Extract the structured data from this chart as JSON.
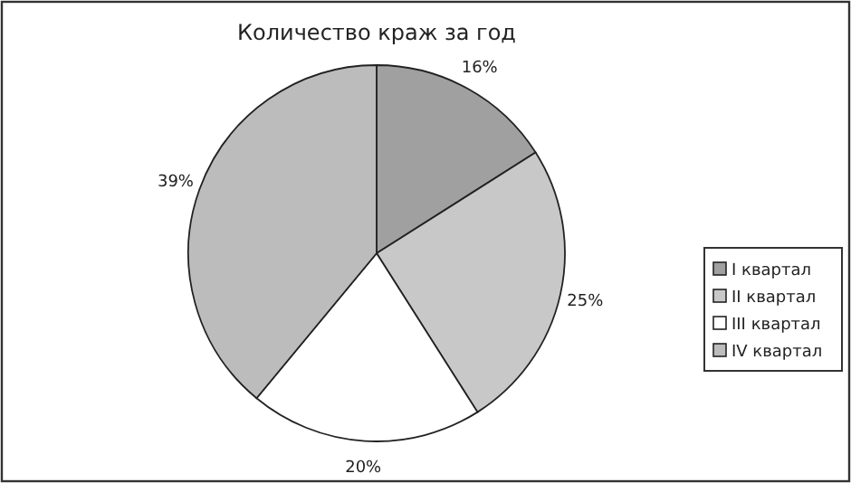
{
  "chart_data": {
    "type": "pie",
    "title": "Количество краж за год",
    "categories": [
      "I квартал",
      "II квартал",
      "III квартал",
      "IV квартал"
    ],
    "values": [
      16,
      25,
      20,
      39
    ],
    "value_labels": [
      "16%",
      "25%",
      "20%",
      "39%"
    ],
    "colors": [
      "#a0a0a0",
      "#c8c8c8",
      "#ffffff",
      "#bcbcbc"
    ],
    "legend": "right"
  }
}
